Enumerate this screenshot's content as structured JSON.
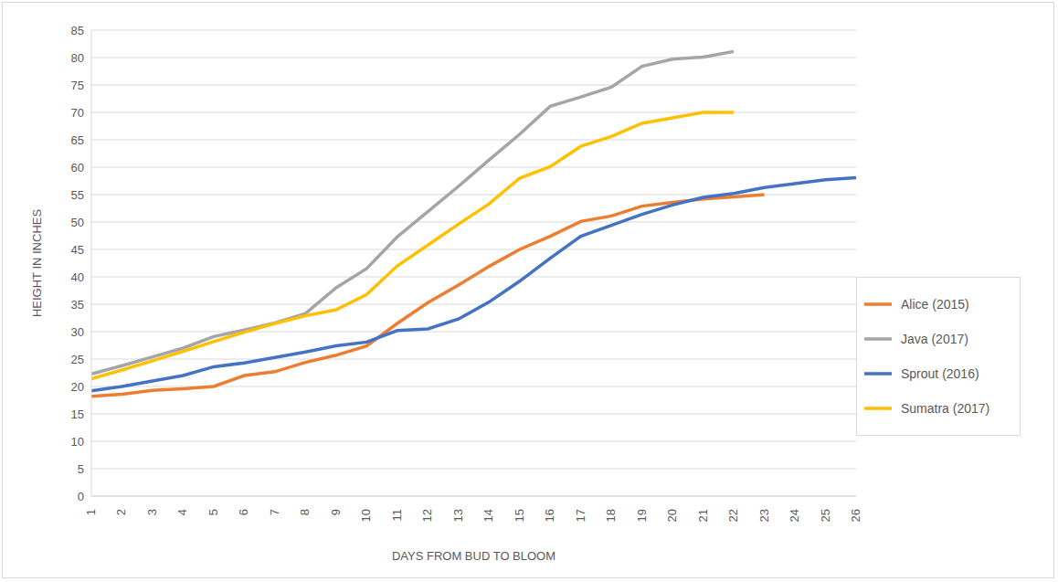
{
  "chart_data": {
    "type": "line",
    "x_label": "DAYS FROM BUD TO BLOOM",
    "y_label": "HEIGHT IN INCHES",
    "x": [
      1,
      2,
      3,
      4,
      5,
      6,
      7,
      8,
      9,
      10,
      11,
      12,
      13,
      14,
      15,
      16,
      17,
      18,
      19,
      20,
      21,
      22,
      23,
      24,
      25,
      26
    ],
    "xlim": [
      1,
      26
    ],
    "xticks": [
      1,
      2,
      3,
      4,
      5,
      6,
      7,
      8,
      9,
      10,
      11,
      12,
      13,
      14,
      15,
      16,
      17,
      18,
      19,
      20,
      21,
      22,
      23,
      24,
      25,
      26
    ],
    "ylim": [
      0,
      85
    ],
    "yticks": [
      0,
      5,
      10,
      15,
      20,
      25,
      30,
      35,
      40,
      45,
      50,
      55,
      60,
      65,
      70,
      75,
      80,
      85
    ],
    "grid": true,
    "legend": "right",
    "series": [
      {
        "name": "Alice (2015)",
        "color": "#ed7d31",
        "values": [
          18.2,
          18.6,
          19.3,
          19.6,
          20,
          22,
          22.7,
          24.4,
          25.7,
          27.4,
          31.5,
          35.3,
          38.5,
          41.9,
          45,
          47.4,
          50.1,
          51.1,
          52.9,
          53.6,
          54.2,
          54.6,
          55,
          null,
          null,
          null
        ]
      },
      {
        "name": "Sprout (2016)",
        "color": "#4472c4",
        "values": [
          19.2,
          20,
          21,
          22,
          23.6,
          24.3,
          25.3,
          26.3,
          27.4,
          28.1,
          30.2,
          30.5,
          32.3,
          35.4,
          39.2,
          43.4,
          47.4,
          49.4,
          51.4,
          53.1,
          54.5,
          55.2,
          56.3,
          57,
          57.7,
          58.1
        ]
      },
      {
        "name": "Java (2017)",
        "color": "#a5a5a5",
        "values": [
          22.3,
          23.8,
          25.4,
          27,
          29.1,
          30.3,
          31.6,
          33.3,
          38,
          41.5,
          47.3,
          51.9,
          56.5,
          61.3,
          66,
          71.1,
          72.8,
          74.6,
          78.4,
          79.7,
          80.1,
          81.1,
          null,
          null,
          null,
          null
        ]
      },
      {
        "name": "Sumatra (2017)",
        "color": "#ffc000",
        "values": [
          21.4,
          23,
          24.7,
          26.4,
          28.2,
          29.9,
          31.5,
          32.9,
          34,
          36.8,
          42,
          45.8,
          49.6,
          53.3,
          58,
          60.1,
          63.8,
          65.6,
          68,
          69,
          70,
          70,
          null,
          null,
          null,
          null
        ]
      }
    ]
  }
}
